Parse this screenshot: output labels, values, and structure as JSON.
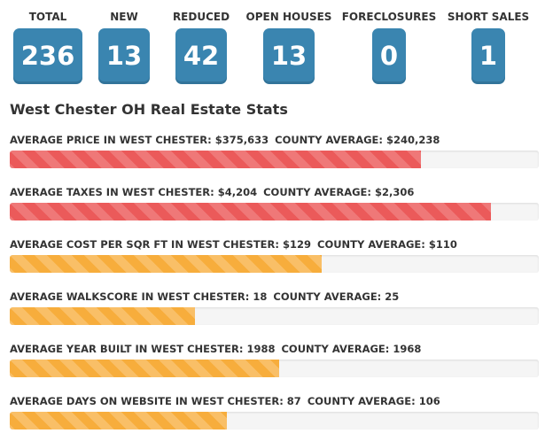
{
  "counters": [
    {
      "label": "TOTAL",
      "value": "236"
    },
    {
      "label": "NEW",
      "value": "13"
    },
    {
      "label": "REDUCED",
      "value": "42"
    },
    {
      "label": "OPEN HOUSES",
      "value": "13"
    },
    {
      "label": "FORECLOSURES",
      "value": "0"
    },
    {
      "label": "SHORT SALES",
      "value": "1"
    }
  ],
  "colors": {
    "counter_box": "#3a85b0",
    "bar_red": "#eb5a5a",
    "bar_orange": "#f7ad3c",
    "track": "#f5f5f5"
  },
  "section_title": "West Chester OH Real Estate Stats",
  "stats": [
    {
      "label": "AVERAGE PRICE IN WEST CHESTER: $375,633",
      "county": "COUNTY AVERAGE: $240,238",
      "fill_fraction": 0.778,
      "color": "red"
    },
    {
      "label": "AVERAGE TAXES IN WEST CHESTER: $4,204",
      "county": "COUNTY AVERAGE: $2,306",
      "fill_fraction": 0.91,
      "color": "red"
    },
    {
      "label": "AVERAGE COST PER SQR FT IN WEST CHESTER: $129",
      "county": "COUNTY AVERAGE: $110",
      "fill_fraction": 0.59,
      "color": "orange"
    },
    {
      "label": "AVERAGE WALKSCORE IN WEST CHESTER: 18",
      "county": "COUNTY AVERAGE: 25",
      "fill_fraction": 0.35,
      "color": "orange"
    },
    {
      "label": "AVERAGE YEAR BUILT IN WEST CHESTER: 1988",
      "county": "COUNTY AVERAGE: 1968",
      "fill_fraction": 0.51,
      "color": "orange"
    },
    {
      "label": "AVERAGE DAYS ON WEBSITE IN WEST CHESTER: 87",
      "county": "COUNTY AVERAGE: 106",
      "fill_fraction": 0.41,
      "color": "orange"
    }
  ]
}
